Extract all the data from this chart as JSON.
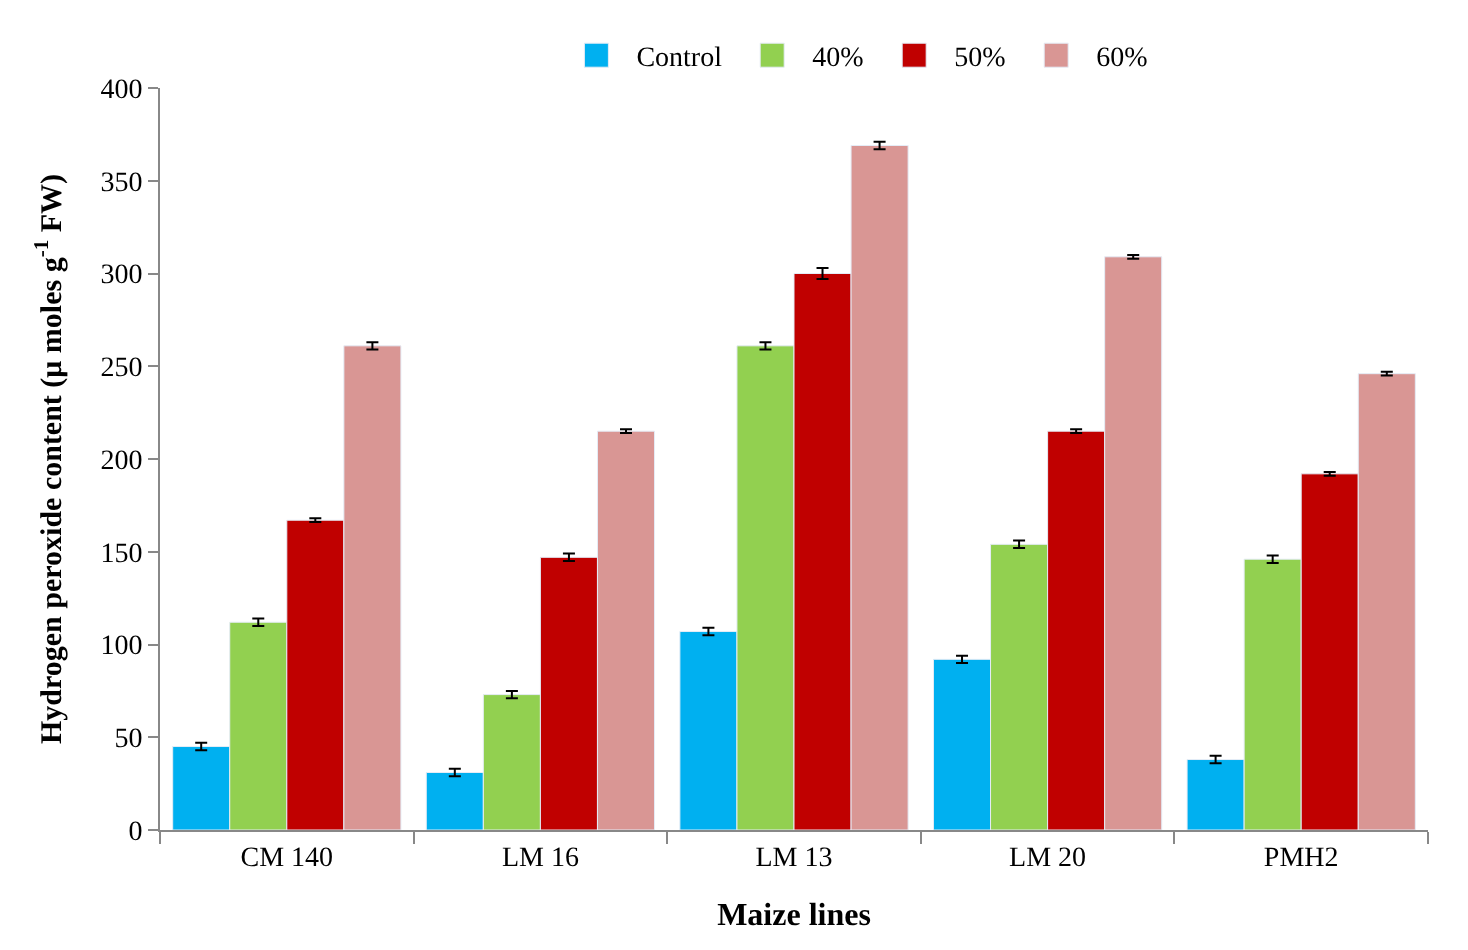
{
  "chart_data": {
    "type": "bar",
    "xlabel": "Maize lines",
    "ylabel": "Hydrogen peroxide content (μ moles g$^{-1}$ FW)",
    "categories": [
      "CM 140",
      "LM 16",
      "LM 13",
      "LM 20",
      "PMH2"
    ],
    "series": [
      {
        "name": "Control",
        "color": "#00b0f0",
        "values": [
          45,
          31,
          107,
          92,
          38
        ],
        "errors": [
          2,
          2,
          2,
          2,
          2
        ]
      },
      {
        "name": "40%",
        "color": "#92d050",
        "values": [
          112,
          73,
          261,
          154,
          146
        ],
        "errors": [
          2,
          2,
          2,
          2,
          2
        ]
      },
      {
        "name": "50%",
        "color": "#c00000",
        "values": [
          167,
          147,
          300,
          215,
          192
        ],
        "errors": [
          1,
          2,
          3,
          1,
          1
        ]
      },
      {
        "name": "60%",
        "color": "#d99694",
        "values": [
          261,
          215,
          369,
          309,
          246
        ],
        "errors": [
          2,
          1,
          2,
          1,
          1
        ]
      }
    ],
    "ylim": [
      0,
      400
    ],
    "yticks": [
      0,
      50,
      100,
      150,
      200,
      250,
      300,
      350,
      400
    ],
    "legend": "top"
  }
}
